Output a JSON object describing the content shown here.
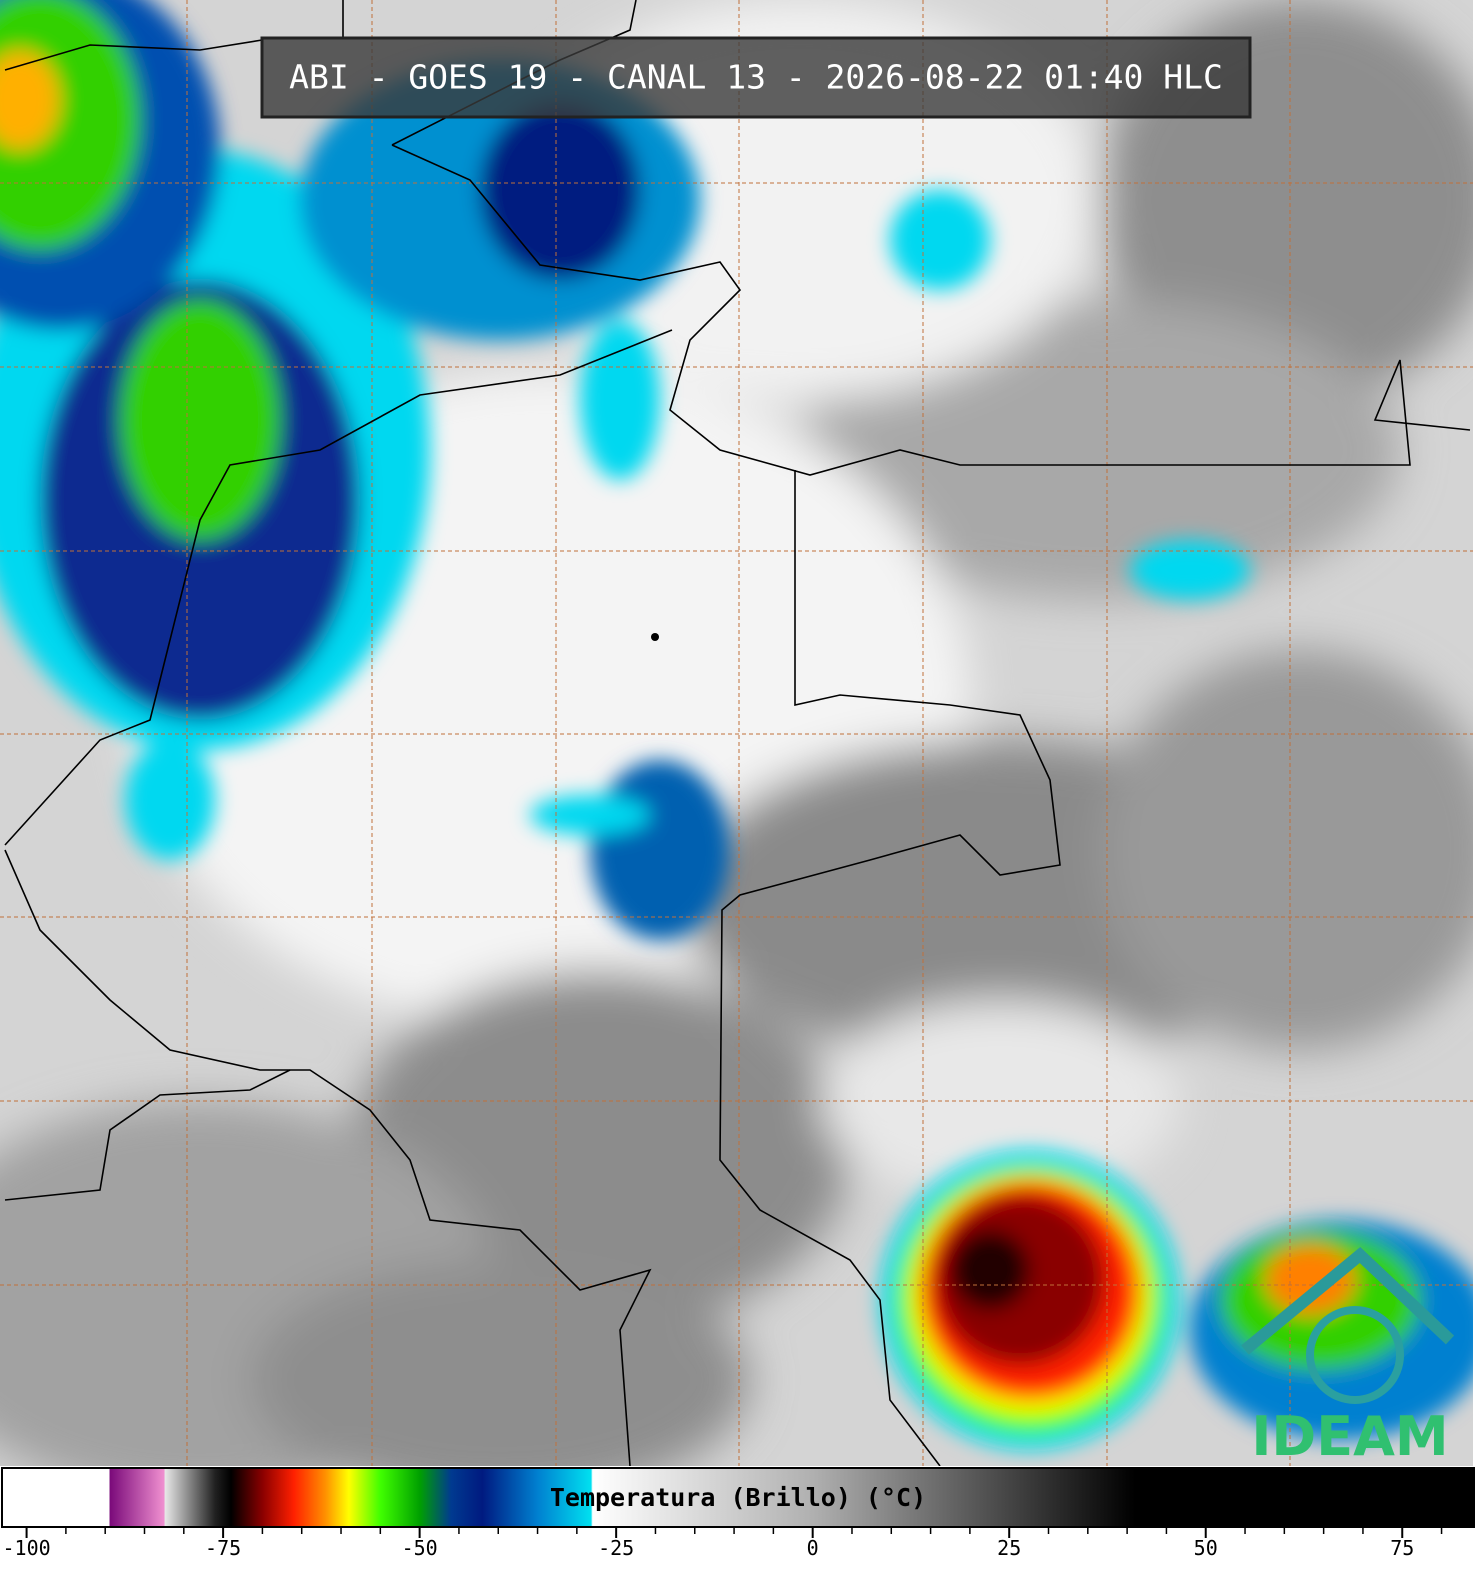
{
  "chart_data": {
    "type": "colorbar",
    "title": "ABI - GOES 19 - CANAL 13 - 2026-08-22 01:40 HLC",
    "colorbar_label": "Temperatura (Brillo) (°C)",
    "logo": "IDEAM",
    "xlim": [
      -103,
      84
    ],
    "xticks": [
      -100,
      -75,
      -50,
      -25,
      0,
      25,
      50,
      75
    ],
    "xticks_minor": [
      -95,
      -90,
      -85,
      -80,
      -70,
      -65,
      -60,
      -55,
      -45,
      -40,
      -35,
      -30,
      -20,
      -15,
      -10,
      -5,
      5,
      10,
      15,
      20,
      30,
      35,
      40,
      45,
      55,
      60,
      65,
      70,
      80
    ],
    "colorbar_stops": [
      {
        "value": -103,
        "color": "#ffffff"
      },
      {
        "value": -89.5,
        "color": "#ffffff"
      },
      {
        "value": -89.4,
        "color": "#7a0a7a"
      },
      {
        "value": -82.5,
        "color": "#f090d0"
      },
      {
        "value": -82.4,
        "color": "#e8e8e8"
      },
      {
        "value": -76,
        "color": "#202020"
      },
      {
        "value": -74,
        "color": "#000000"
      },
      {
        "value": -70,
        "color": "#8a0000"
      },
      {
        "value": -66,
        "color": "#ff2000"
      },
      {
        "value": -62,
        "color": "#ff9000"
      },
      {
        "value": -59,
        "color": "#ffff00"
      },
      {
        "value": -55,
        "color": "#40ff00"
      },
      {
        "value": -50,
        "color": "#00a000"
      },
      {
        "value": -46,
        "color": "#003a90"
      },
      {
        "value": -42,
        "color": "#001a80"
      },
      {
        "value": -35,
        "color": "#0080d0"
      },
      {
        "value": -28.2,
        "color": "#00e0f0"
      },
      {
        "value": -28,
        "color": "#ffffff"
      },
      {
        "value": 0,
        "color": "#b0b0b0"
      },
      {
        "value": 41,
        "color": "#000000"
      },
      {
        "value": 84,
        "color": "#000000"
      }
    ]
  }
}
